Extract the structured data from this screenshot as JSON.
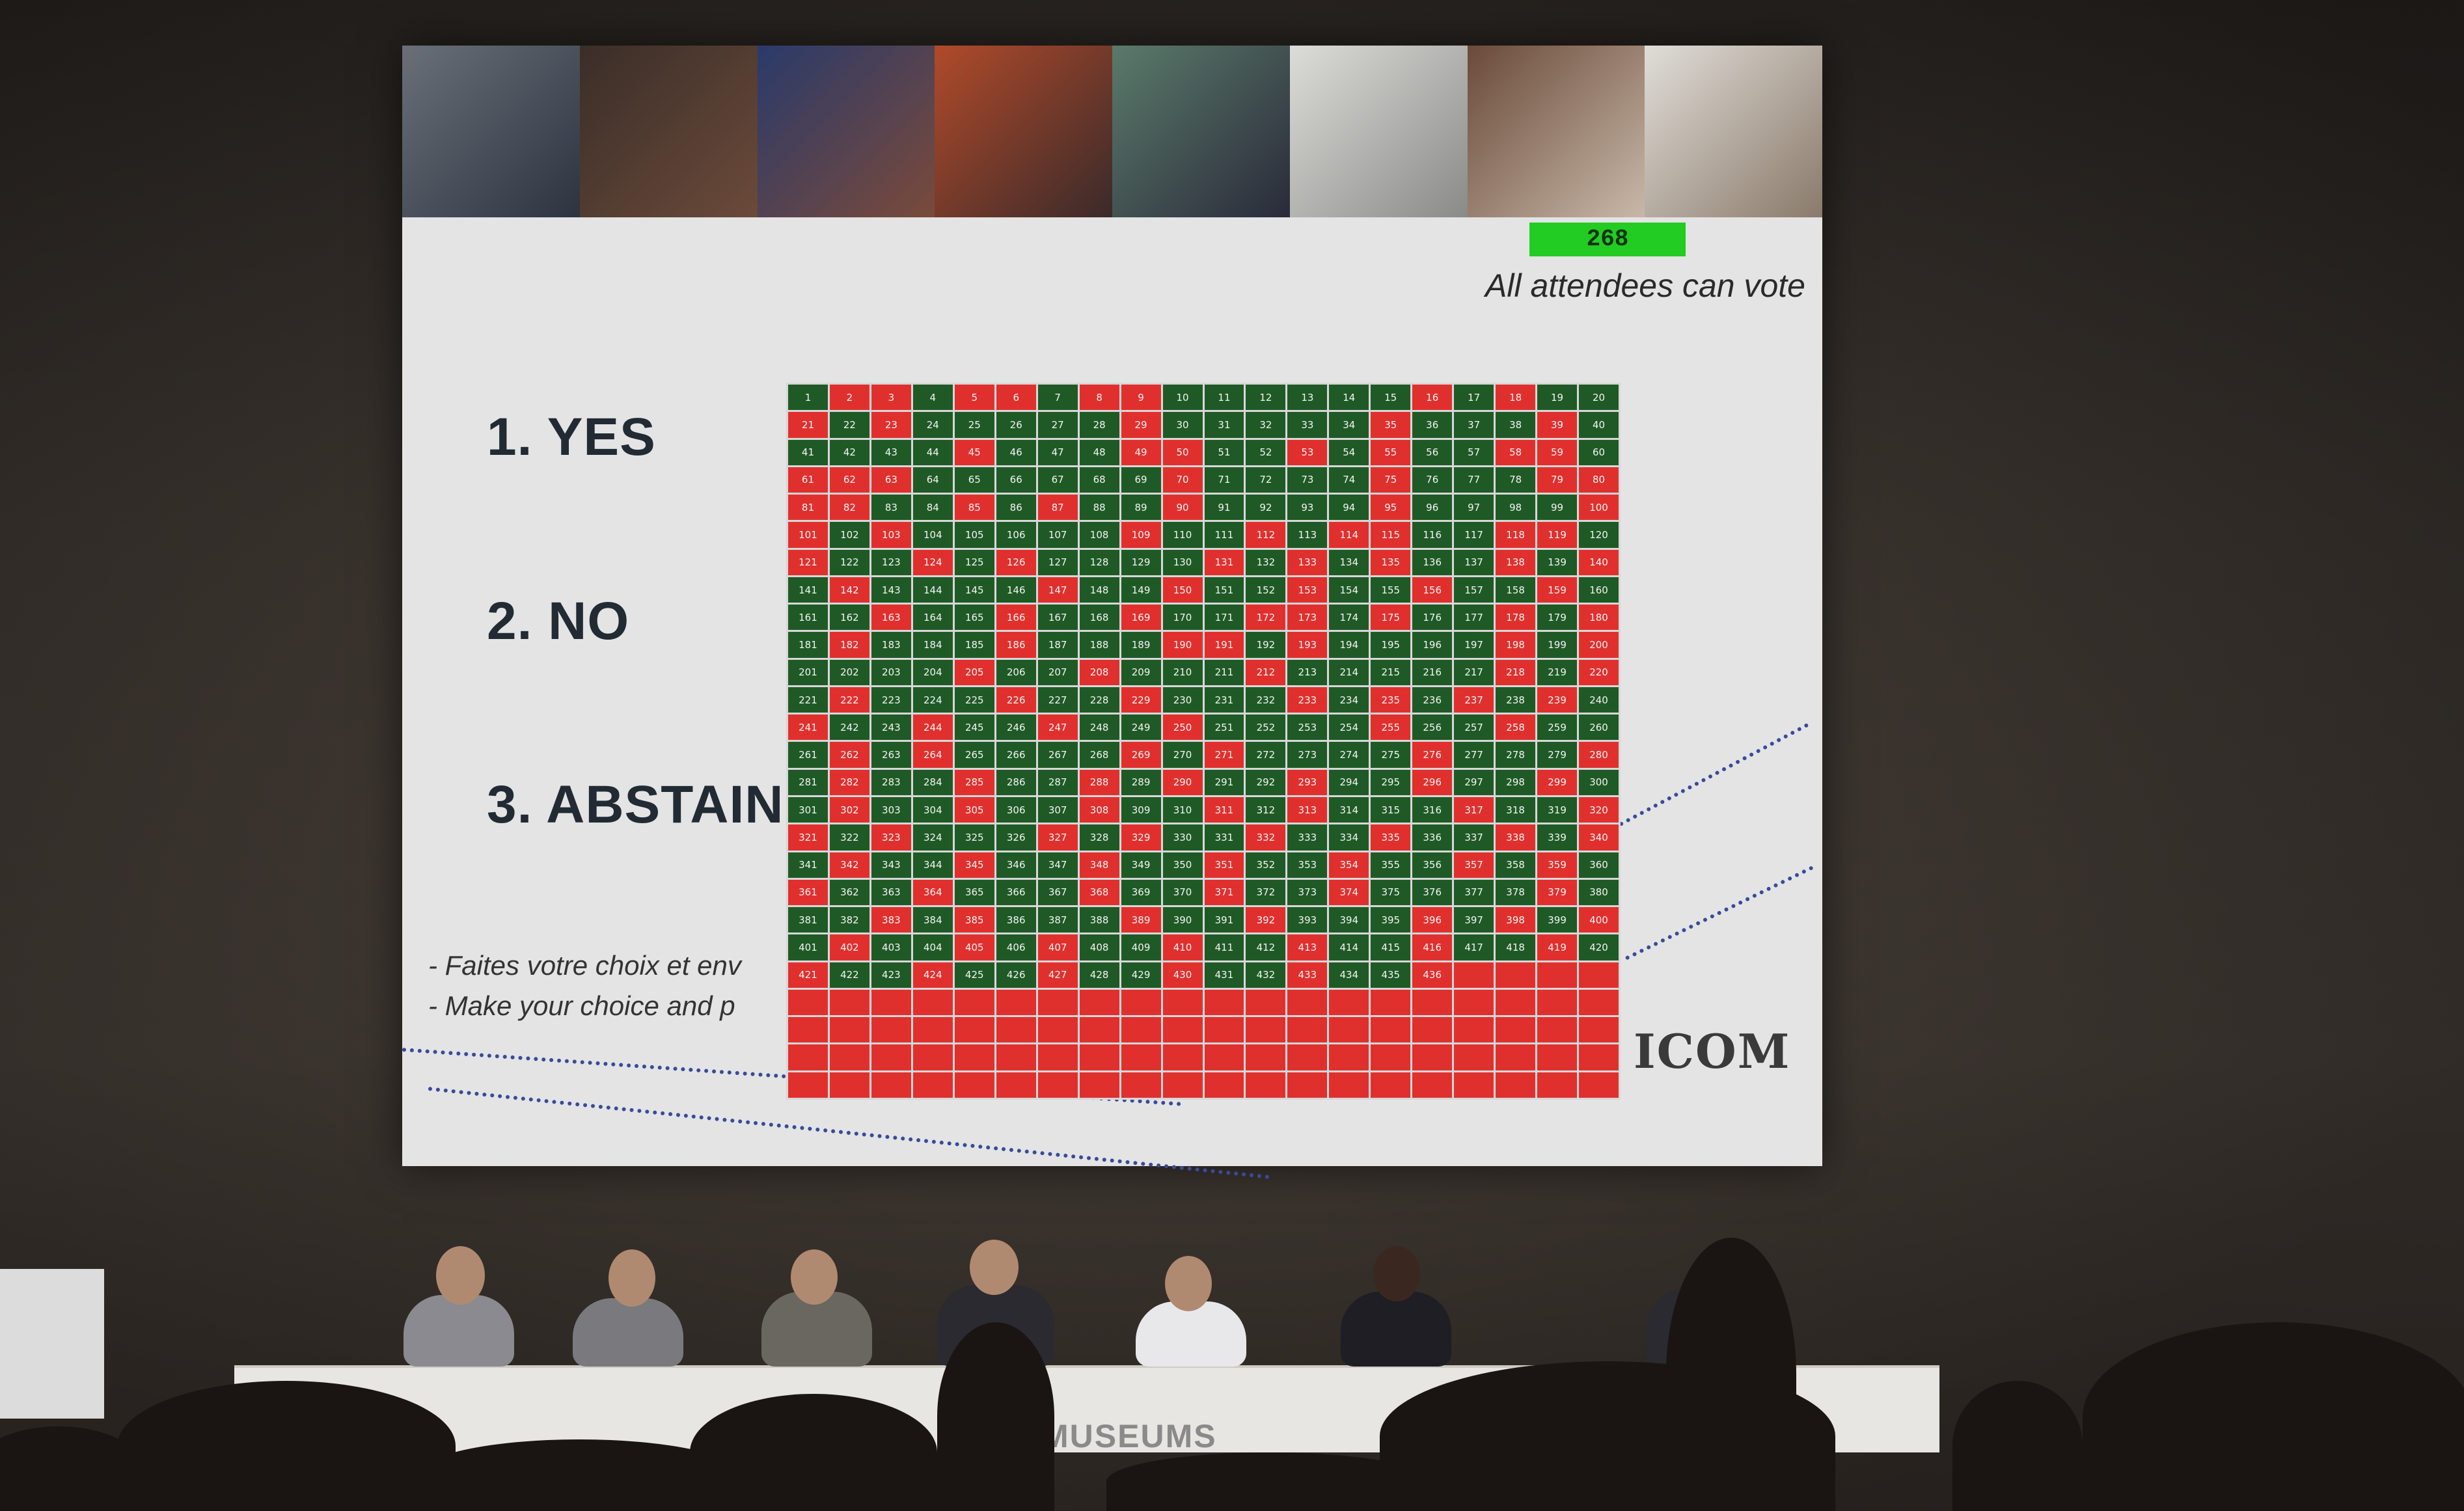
{
  "slide": {
    "count": "268",
    "vote_note": "All attendees can vote",
    "options": [
      "1. YES",
      "2. NO",
      "3. ABSTAIN"
    ],
    "instructions": [
      "- Faites votre choix et env",
      "- Make your choice and p"
    ],
    "logo": "ICOM",
    "colors": {
      "yes": "#1f5a26",
      "no": "#e0302e",
      "counter": "#22cc22"
    }
  },
  "grid": {
    "columns": 20,
    "numbered_seats": 436,
    "total_cells": 520,
    "red_seats": [
      2,
      3,
      5,
      6,
      8,
      9,
      16,
      18,
      21,
      23,
      29,
      35,
      39,
      45,
      49,
      50,
      53,
      55,
      58,
      59,
      61,
      62,
      63,
      70,
      75,
      79,
      80,
      81,
      82,
      85,
      87,
      90,
      95,
      100,
      101,
      103,
      109,
      112,
      114,
      115,
      118,
      119,
      121,
      124,
      126,
      131,
      133,
      135,
      138,
      140,
      142,
      147,
      150,
      153,
      156,
      159,
      163,
      166,
      169,
      172,
      173,
      175,
      178,
      180,
      182,
      186,
      190,
      191,
      193,
      198,
      200,
      205,
      208,
      212,
      218,
      220,
      222,
      226,
      229,
      233,
      235,
      237,
      239,
      241,
      244,
      247,
      250,
      255,
      258,
      262,
      264,
      269,
      271,
      276,
      280,
      282,
      285,
      288,
      290,
      293,
      296,
      299,
      302,
      305,
      308,
      311,
      313,
      317,
      320,
      321,
      323,
      327,
      329,
      332,
      335,
      338,
      340,
      342,
      345,
      348,
      351,
      354,
      357,
      359,
      361,
      364,
      368,
      371,
      374,
      379,
      383,
      385,
      389,
      392,
      396,
      398,
      400,
      402,
      405,
      407,
      410,
      413,
      416,
      419,
      421,
      424,
      427,
      430,
      433,
      436
    ]
  },
  "stage": {
    "table_text": "MUSEUMS"
  }
}
